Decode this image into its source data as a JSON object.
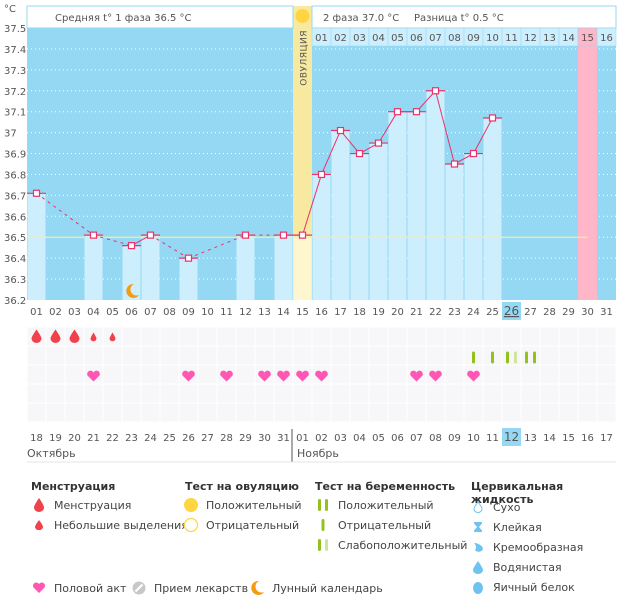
{
  "header": {
    "unit_label": "°C",
    "phase1_text": "Средняя t° 1 фаза 36.5 °C",
    "phase2_text": "2 фаза 37.0 °C",
    "diff_text": "Разница t° 0.5 °C",
    "ovulation_label": "ОВУЛЯЦИЯ"
  },
  "colors": {
    "chart_bg": "#94d8f3",
    "bar_fill": "#cdeefd",
    "ovulation_col": "#f7e9a0",
    "ovulation_bar": "#fdf6cf",
    "pink_col": "#ffb6c8",
    "line": "#e8336b",
    "coverline": "#f4ee9a",
    "header_cell": "#cdeefd",
    "today_cell": "#94d8f3",
    "weekend_text": "#e8336b",
    "drop": "#f0424c",
    "heart": "#ff57b3",
    "preg_positive": "#95c11f",
    "preg_faint": "#d2e3a0",
    "ov_sun": "#ffd541",
    "moon": "#f39c12"
  },
  "chart_data": {
    "type": "line",
    "title": "",
    "xlabel": "",
    "ylabel": "°C",
    "ylim": [
      36.2,
      37.5
    ],
    "yticks": [
      "36.2",
      "36.3",
      "36.4",
      "36.5",
      "36.6",
      "36.7",
      "36.8",
      "36.9",
      "37",
      "37.1",
      "37.2",
      "37.3",
      "37.4",
      "37.5"
    ],
    "cycle_days": [
      "01",
      "02",
      "03",
      "04",
      "05",
      "06",
      "07",
      "08",
      "09",
      "10",
      "11",
      "12",
      "13",
      "14",
      "15",
      "16",
      "17",
      "18",
      "19",
      "20",
      "21",
      "22",
      "23",
      "24",
      "25",
      "26",
      "27",
      "28",
      "29",
      "30",
      "31"
    ],
    "post_ovulation_days": [
      "01",
      "02",
      "03",
      "04",
      "05",
      "06",
      "07",
      "08",
      "09",
      "10",
      "11",
      "12",
      "13",
      "14",
      "15",
      "16"
    ],
    "temperatures": [
      36.71,
      null,
      null,
      36.51,
      null,
      36.46,
      36.51,
      null,
      36.4,
      null,
      null,
      36.51,
      null,
      36.51,
      36.51,
      36.8,
      37.01,
      36.9,
      36.95,
      37.1,
      37.1,
      37.2,
      36.85,
      36.9,
      37.07,
      null,
      null,
      null,
      null,
      null,
      null
    ],
    "coverline": 36.5,
    "ovulation_day_index": 14,
    "highlight_day_index": 29,
    "today_cycle_day": "26",
    "calendar_dates": [
      "18",
      "19",
      "20",
      "21",
      "22",
      "23",
      "24",
      "25",
      "26",
      "27",
      "28",
      "29",
      "30",
      "31",
      "01",
      "02",
      "03",
      "04",
      "05",
      "06",
      "07",
      "08",
      "09",
      "10",
      "11",
      "12",
      "13",
      "14",
      "15",
      "16",
      "17"
    ],
    "weekend_date_indices": [
      4,
      5,
      11,
      12,
      18,
      19,
      26
    ],
    "today_date_index": 25,
    "months": [
      {
        "label": "Октябрь",
        "start_index": 0
      },
      {
        "label": "Ноябрь",
        "start_index": 14
      }
    ],
    "menstruation": [
      "heavy",
      "heavy",
      "heavy",
      "light",
      "light",
      null,
      null,
      null,
      null,
      null,
      null,
      null,
      null,
      null,
      null,
      null,
      null,
      null,
      null,
      null,
      null,
      null,
      null,
      null,
      null,
      null,
      null,
      null,
      null,
      null,
      null
    ],
    "pregnancy_tests": [
      null,
      null,
      null,
      null,
      null,
      null,
      null,
      null,
      null,
      null,
      null,
      null,
      null,
      null,
      null,
      null,
      null,
      null,
      null,
      null,
      null,
      null,
      null,
      "negative",
      "negative",
      "faint",
      "positive",
      null,
      null,
      null,
      null
    ],
    "intercourse": [
      false,
      false,
      false,
      true,
      false,
      false,
      false,
      false,
      true,
      false,
      true,
      false,
      true,
      true,
      true,
      true,
      false,
      false,
      false,
      false,
      true,
      true,
      false,
      true,
      false,
      false,
      false,
      false,
      false,
      false,
      false
    ],
    "moon_day_index": 5
  },
  "legend": {
    "menstruation": {
      "title": "Менструация",
      "items": [
        "Менструация",
        "Небольшие выделения"
      ]
    },
    "ovulation_test": {
      "title": "Тест на овуляцию",
      "items": [
        "Положительный",
        "Отрицательный"
      ]
    },
    "pregnancy_test": {
      "title": "Тест на беременность",
      "items": [
        "Положительный",
        "Отрицательный",
        "Слабоположительный"
      ]
    },
    "cervical_fluid": {
      "title": "Цервикальная жидкость",
      "items": [
        "Сухо",
        "Клейкая",
        "Кремообразная",
        "Водянистая",
        "Яичный белок"
      ]
    },
    "bottom": [
      "Половой акт",
      "Прием лекарств",
      "Лунный календарь"
    ]
  }
}
